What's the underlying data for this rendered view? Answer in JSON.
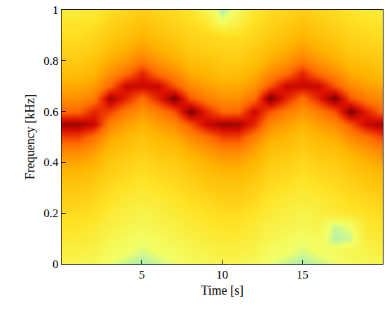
{
  "chart_data": {
    "type": "heatmap",
    "x_label": "Time [s]",
    "y_label": "Frequency [kHz]",
    "x": [
      0,
      1,
      2,
      3,
      4,
      5,
      6,
      7,
      8,
      9,
      10,
      11,
      12,
      13,
      14,
      15,
      16,
      17,
      18,
      19,
      20
    ],
    "y": [
      0,
      0.05,
      0.1,
      0.15,
      0.2,
      0.25,
      0.3,
      0.35,
      0.4,
      0.45,
      0.5,
      0.55,
      0.6,
      0.65,
      0.7,
      0.75,
      0.8,
      0.85,
      0.9,
      0.95,
      1
    ],
    "z": [
      [
        -48,
        -45,
        -43,
        -40,
        -38,
        -35,
        -33,
        -30,
        -26,
        -21,
        -13,
        -3,
        -17,
        -23,
        -27,
        -31,
        -34,
        -36,
        -39,
        -41,
        -44
      ],
      [
        -48,
        -45,
        -43,
        -40,
        -38,
        -35,
        -33,
        -30,
        -26,
        -21,
        -13,
        -3,
        -17,
        -23,
        -27,
        -31,
        -34,
        -36,
        -39,
        -41,
        -44
      ],
      [
        -49,
        -47,
        -44,
        -42,
        -39,
        -37,
        -34,
        -32,
        -28,
        -24,
        -18,
        -6,
        -10,
        -20,
        -25,
        -29,
        -32,
        -35,
        -37,
        -40,
        -43
      ],
      [
        -53,
        -50,
        -48,
        -45,
        -43,
        -40,
        -38,
        -35,
        -33,
        -30,
        -26,
        -21,
        -13,
        -3,
        -17,
        -23,
        -27,
        -31,
        -34,
        -36,
        -39
      ],
      [
        -55,
        -52,
        -50,
        -47,
        -45,
        -43,
        -40,
        -37,
        -35,
        -32,
        -29,
        -25,
        -20,
        -10,
        -6,
        -18,
        -24,
        -28,
        -32,
        -34,
        -37
      ],
      [
        -57,
        -54,
        -52,
        -49,
        -47,
        -44,
        -42,
        -39,
        -37,
        -34,
        -32,
        -28,
        -24,
        -18,
        -6,
        -10,
        -20,
        -25,
        -29,
        -32,
        -35
      ],
      [
        -55,
        -52,
        -50,
        -47,
        -45,
        -43,
        -40,
        -37,
        -35,
        -32,
        -29,
        -25,
        -20,
        -10,
        -6,
        -18,
        -24,
        -28,
        -32,
        -34,
        -37
      ],
      [
        -53,
        -51,
        -48,
        -46,
        -43,
        -41,
        -38,
        -36,
        -34,
        -31,
        -27,
        -22,
        -15,
        0,
        -15,
        -22,
        -27,
        -31,
        -34,
        -36,
        -38
      ],
      [
        -51,
        -48,
        -46,
        -43,
        -41,
        -38,
        -36,
        -34,
        -31,
        -27,
        -22,
        -15,
        0,
        -15,
        -22,
        -27,
        -31,
        -34,
        -36,
        -38,
        -41
      ],
      [
        -49,
        -47,
        -44,
        -42,
        -39,
        -37,
        -34,
        -32,
        -28,
        -24,
        -18,
        -6,
        -10,
        -20,
        -25,
        -29,
        -32,
        -35,
        -37,
        -42,
        -48
      ],
      [
        -48,
        -45,
        -43,
        -40,
        -38,
        -35,
        -33,
        -30,
        -26,
        -21,
        -13,
        -3,
        -17,
        -23,
        -27,
        -31,
        -34,
        -36,
        -39,
        -52,
        -57
      ],
      [
        -48,
        -45,
        -43,
        -40,
        -38,
        -35,
        -33,
        -30,
        -26,
        -21,
        -13,
        -3,
        -17,
        -23,
        -27,
        -31,
        -34,
        -36,
        -39,
        -46,
        -50
      ],
      [
        -50,
        -47,
        -45,
        -43,
        -40,
        -37,
        -35,
        -32,
        -29,
        -25,
        -20,
        -10,
        -6,
        -18,
        -24,
        -28,
        -32,
        -34,
        -37,
        -39,
        -42
      ],
      [
        -53,
        -51,
        -48,
        -46,
        -43,
        -41,
        -38,
        -36,
        -34,
        -31,
        -27,
        -22,
        -15,
        0,
        -15,
        -22,
        -27,
        -31,
        -34,
        -36,
        -38
      ],
      [
        -55,
        -52,
        -50,
        -47,
        -45,
        -43,
        -40,
        -37,
        -35,
        -32,
        -29,
        -25,
        -20,
        -10,
        -6,
        -18,
        -24,
        -28,
        -32,
        -34,
        -37
      ],
      [
        -57,
        -54,
        -52,
        -49,
        -47,
        -44,
        -42,
        -39,
        -37,
        -34,
        -32,
        -28,
        -24,
        -18,
        -6,
        -10,
        -20,
        -25,
        -29,
        -32,
        -35
      ],
      [
        -55,
        -52,
        -50,
        -47,
        -45,
        -43,
        -40,
        -37,
        -35,
        -32,
        -29,
        -25,
        -20,
        -10,
        -6,
        -18,
        -24,
        -28,
        -32,
        -34,
        -37
      ],
      [
        -53,
        -51,
        -56,
        -55,
        -43,
        -41,
        -38,
        -36,
        -34,
        -31,
        -27,
        -22,
        -15,
        0,
        -15,
        -22,
        -27,
        -31,
        -34,
        -36,
        -38
      ],
      [
        -51,
        -48,
        -55,
        -52,
        -41,
        -38,
        -36,
        -34,
        -31,
        -27,
        -22,
        -15,
        0,
        -15,
        -22,
        -27,
        -31,
        -34,
        -36,
        -38,
        -41
      ],
      [
        -49,
        -47,
        -44,
        -42,
        -39,
        -37,
        -34,
        -32,
        -28,
        -24,
        -18,
        -6,
        -10,
        -20,
        -25,
        -29,
        -32,
        -35,
        -37,
        -40,
        -43
      ],
      [
        -48,
        -45,
        -43,
        -40,
        -38,
        -35,
        -33,
        -30,
        -26,
        -21,
        -13,
        -3,
        -17,
        -23,
        -27,
        -31,
        -34,
        -36,
        -39,
        -41,
        -44
      ]
    ],
    "xlim": [
      0,
      20
    ],
    "ylim": [
      0,
      1
    ],
    "xticks": [
      5,
      10,
      15
    ],
    "yticks": [
      0,
      0.2,
      0.4,
      0.6,
      0.8,
      1
    ],
    "grid": false
  }
}
